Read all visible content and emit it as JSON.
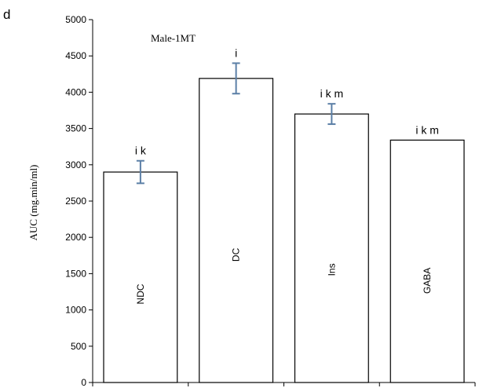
{
  "chart_data": {
    "type": "bar",
    "panel_label": "d",
    "title": "Male-1MT",
    "ylabel": "AUC (mg.min/ml)",
    "xlabel": "",
    "ylim": [
      0,
      5000
    ],
    "y_ticks": [
      0,
      500,
      1000,
      1500,
      2000,
      2500,
      3000,
      3500,
      4000,
      4500,
      5000
    ],
    "categories": [
      "NDC",
      "DC",
      "Ins",
      "GABA"
    ],
    "values": [
      2900,
      4190,
      3700,
      3340
    ],
    "error": [
      155,
      210,
      140,
      0
    ],
    "significance": [
      "i k",
      "i",
      "i k m",
      "i k m"
    ],
    "grid": false,
    "bar_fill": "#ffffff",
    "bar_stroke": "#000000",
    "error_color": "#5b7fa6"
  }
}
